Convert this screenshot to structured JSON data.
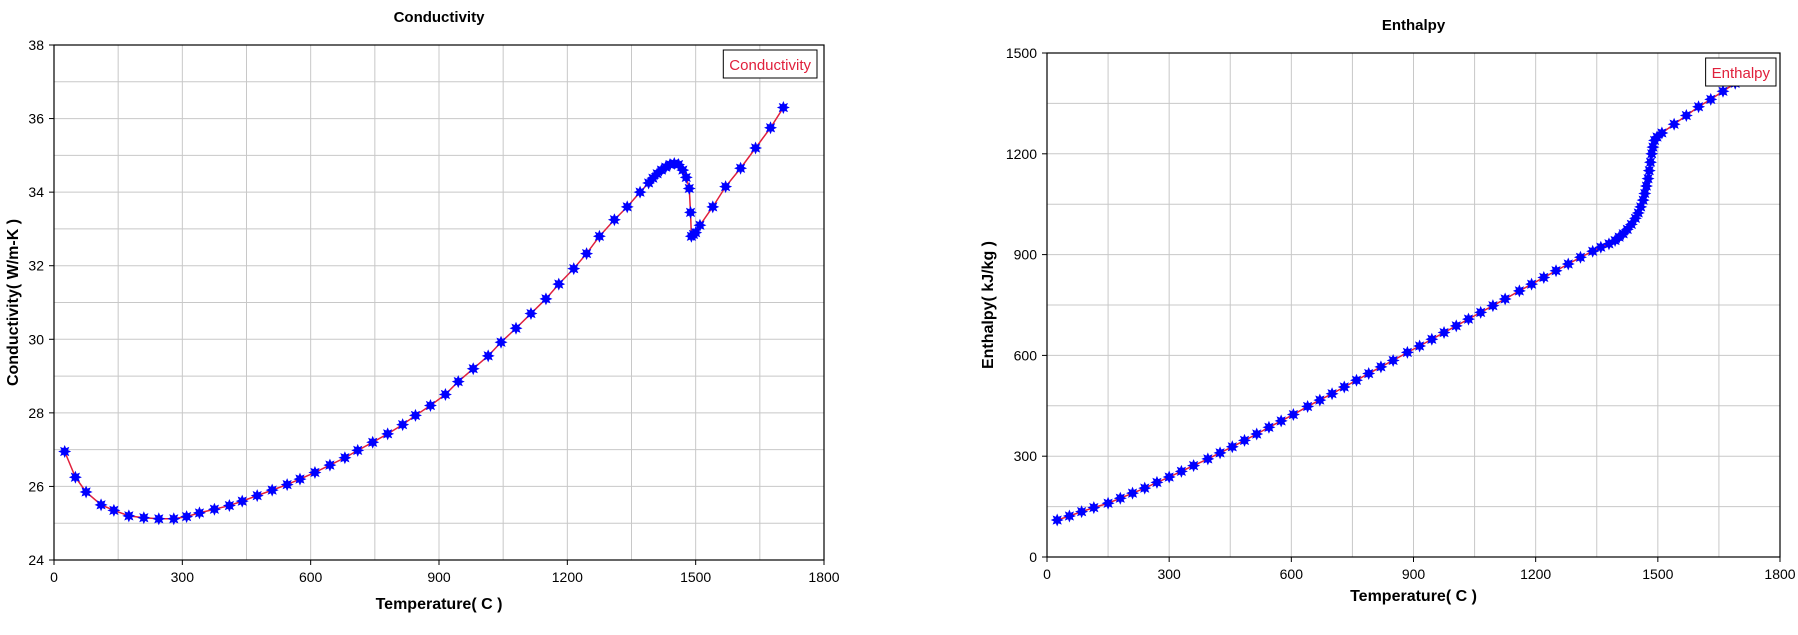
{
  "chart_data": [
    {
      "type": "line",
      "title": "Conductivity",
      "xlabel": "Temperature( C )",
      "ylabel": "Conductivity( W/m-K )",
      "xlim": [
        0,
        1800
      ],
      "ylim": [
        24,
        38
      ],
      "xticks": [
        "0",
        "300",
        "600",
        "900",
        "1200",
        "1500",
        "1800"
      ],
      "yticks": [
        "24",
        "26",
        "28",
        "30",
        "32",
        "34",
        "36",
        "38"
      ],
      "grid": true,
      "legend_position": "top-right",
      "line_color": "#e0203c",
      "marker_color": "#0000ff",
      "series": [
        {
          "name": "Conductivity",
          "x": [
            25,
            50,
            75,
            110,
            140,
            175,
            210,
            245,
            280,
            310,
            340,
            375,
            410,
            440,
            475,
            510,
            545,
            575,
            610,
            645,
            680,
            710,
            745,
            780,
            815,
            845,
            880,
            915,
            945,
            980,
            1015,
            1045,
            1080,
            1115,
            1150,
            1180,
            1215,
            1245,
            1275,
            1310,
            1340,
            1370,
            1390,
            1400,
            1410,
            1420,
            1430,
            1440,
            1450,
            1460,
            1470,
            1478,
            1485,
            1488,
            1490,
            1495,
            1500,
            1510,
            1540,
            1570,
            1605,
            1640,
            1675,
            1705
          ],
          "y": [
            26.95,
            26.25,
            25.85,
            25.5,
            25.35,
            25.2,
            25.15,
            25.12,
            25.12,
            25.18,
            25.28,
            25.38,
            25.48,
            25.6,
            25.75,
            25.9,
            26.05,
            26.2,
            26.38,
            26.58,
            26.78,
            26.98,
            27.2,
            27.43,
            27.68,
            27.93,
            28.2,
            28.5,
            28.85,
            29.2,
            29.55,
            29.92,
            30.3,
            30.7,
            31.1,
            31.5,
            31.92,
            32.33,
            32.8,
            33.25,
            33.6,
            34.0,
            34.25,
            34.38,
            34.5,
            34.6,
            34.68,
            34.75,
            34.78,
            34.75,
            34.6,
            34.4,
            34.1,
            33.45,
            32.8,
            32.85,
            32.9,
            33.1,
            33.6,
            34.15,
            34.65,
            35.2,
            35.75,
            36.3
          ]
        }
      ]
    },
    {
      "type": "line",
      "title": "Enthalpy",
      "xlabel": "Temperature( C )",
      "ylabel": "Enthalpy( kJ/kg )",
      "xlim": [
        0,
        1800
      ],
      "ylim": [
        0,
        1500
      ],
      "xticks": [
        "0",
        "300",
        "600",
        "900",
        "1200",
        "1500",
        "1800"
      ],
      "yticks": [
        "0",
        "300",
        "600",
        "900",
        "1200",
        "1500"
      ],
      "grid": true,
      "legend_position": "top-right",
      "line_color": "#e0203c",
      "marker_color": "#0000ff",
      "series": [
        {
          "name": "Enthalpy",
          "x": [
            25,
            55,
            85,
            115,
            150,
            180,
            210,
            240,
            270,
            300,
            330,
            360,
            395,
            425,
            455,
            485,
            515,
            545,
            575,
            605,
            640,
            670,
            700,
            730,
            760,
            790,
            820,
            850,
            885,
            915,
            945,
            975,
            1005,
            1035,
            1065,
            1095,
            1125,
            1160,
            1190,
            1220,
            1250,
            1280,
            1310,
            1340,
            1360,
            1380,
            1395,
            1405,
            1415,
            1425,
            1435,
            1445,
            1452,
            1458,
            1464,
            1468,
            1472,
            1476,
            1479,
            1482,
            1485,
            1488,
            1492,
            1498,
            1510,
            1540,
            1570,
            1600,
            1630,
            1660,
            1690
          ],
          "y": [
            110,
            122,
            135,
            147,
            160,
            175,
            190,
            205,
            222,
            238,
            255,
            272,
            292,
            310,
            328,
            347,
            366,
            386,
            405,
            424,
            448,
            467,
            486,
            506,
            526,
            546,
            566,
            585,
            609,
            628,
            648,
            668,
            688,
            708,
            728,
            748,
            768,
            792,
            812,
            832,
            852,
            872,
            892,
            910,
            922,
            932,
            942,
            952,
            962,
            975,
            990,
            1008,
            1024,
            1042,
            1062,
            1082,
            1104,
            1126,
            1150,
            1175,
            1200,
            1220,
            1240,
            1250,
            1262,
            1288,
            1314,
            1340,
            1362,
            1386,
            1410
          ]
        }
      ]
    }
  ]
}
